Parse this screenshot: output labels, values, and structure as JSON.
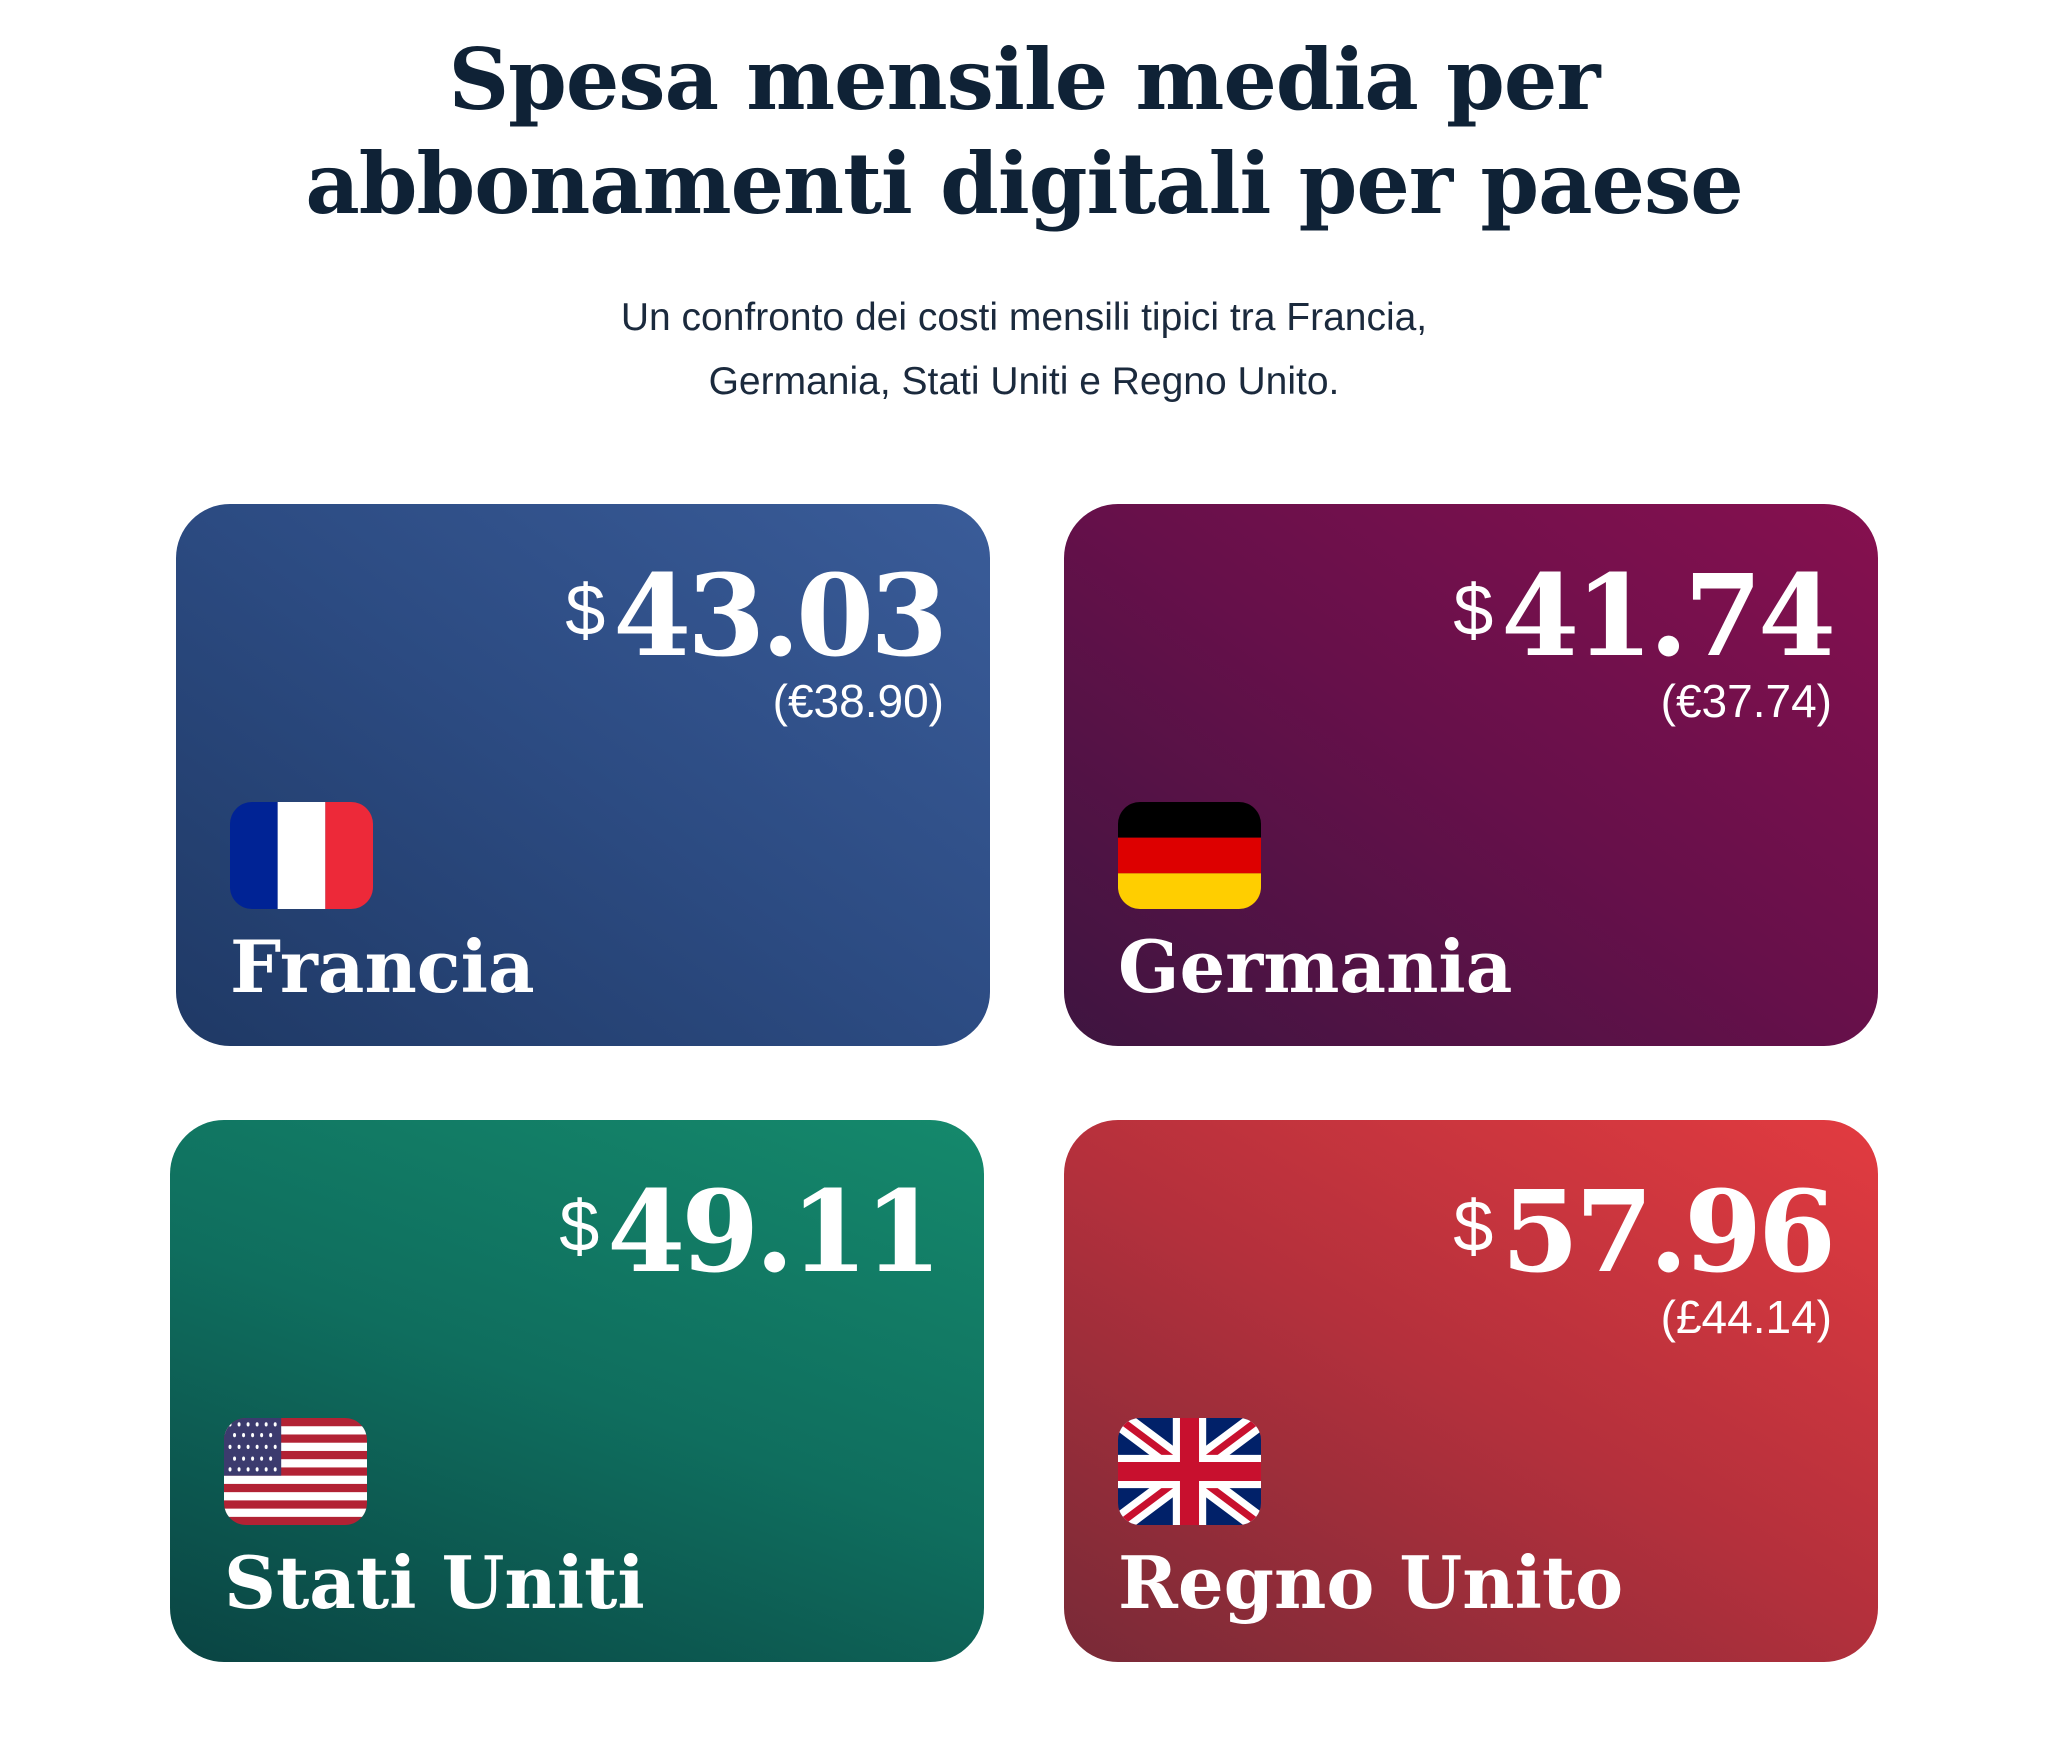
{
  "title": {
    "line1": "Spesa mensile media per",
    "line2": "abbonamenti digitali per paese"
  },
  "subtitle": {
    "line1": "Un confronto dei costi mensili tipici tra Francia,",
    "line2": "Germania, Stati Uniti e Regno Unito."
  },
  "cards": [
    {
      "country": "Francia",
      "currency_symbol": "$",
      "usd": "43.03",
      "local": "(€38.90)",
      "flag_icon": "france-flag-icon",
      "colors": [
        "#213c6a",
        "#3a5c98"
      ]
    },
    {
      "country": "Germania",
      "currency_symbol": "$",
      "usd": "41.74",
      "local": "(€37.74)",
      "flag_icon": "germany-flag-icon",
      "colors": [
        "#41143f",
        "#850f4f"
      ]
    },
    {
      "country": "Stati Uniti",
      "currency_symbol": "$",
      "usd": "49.11",
      "local": "",
      "flag_icon": "usa-flag-icon",
      "colors": [
        "#0a4745",
        "#14886b"
      ]
    },
    {
      "country": "Regno Unito",
      "currency_symbol": "$",
      "usd": "57.96",
      "local": "(£44.14)",
      "flag_icon": "uk-flag-icon",
      "colors": [
        "#7b2a38",
        "#e23b40"
      ]
    }
  ]
}
